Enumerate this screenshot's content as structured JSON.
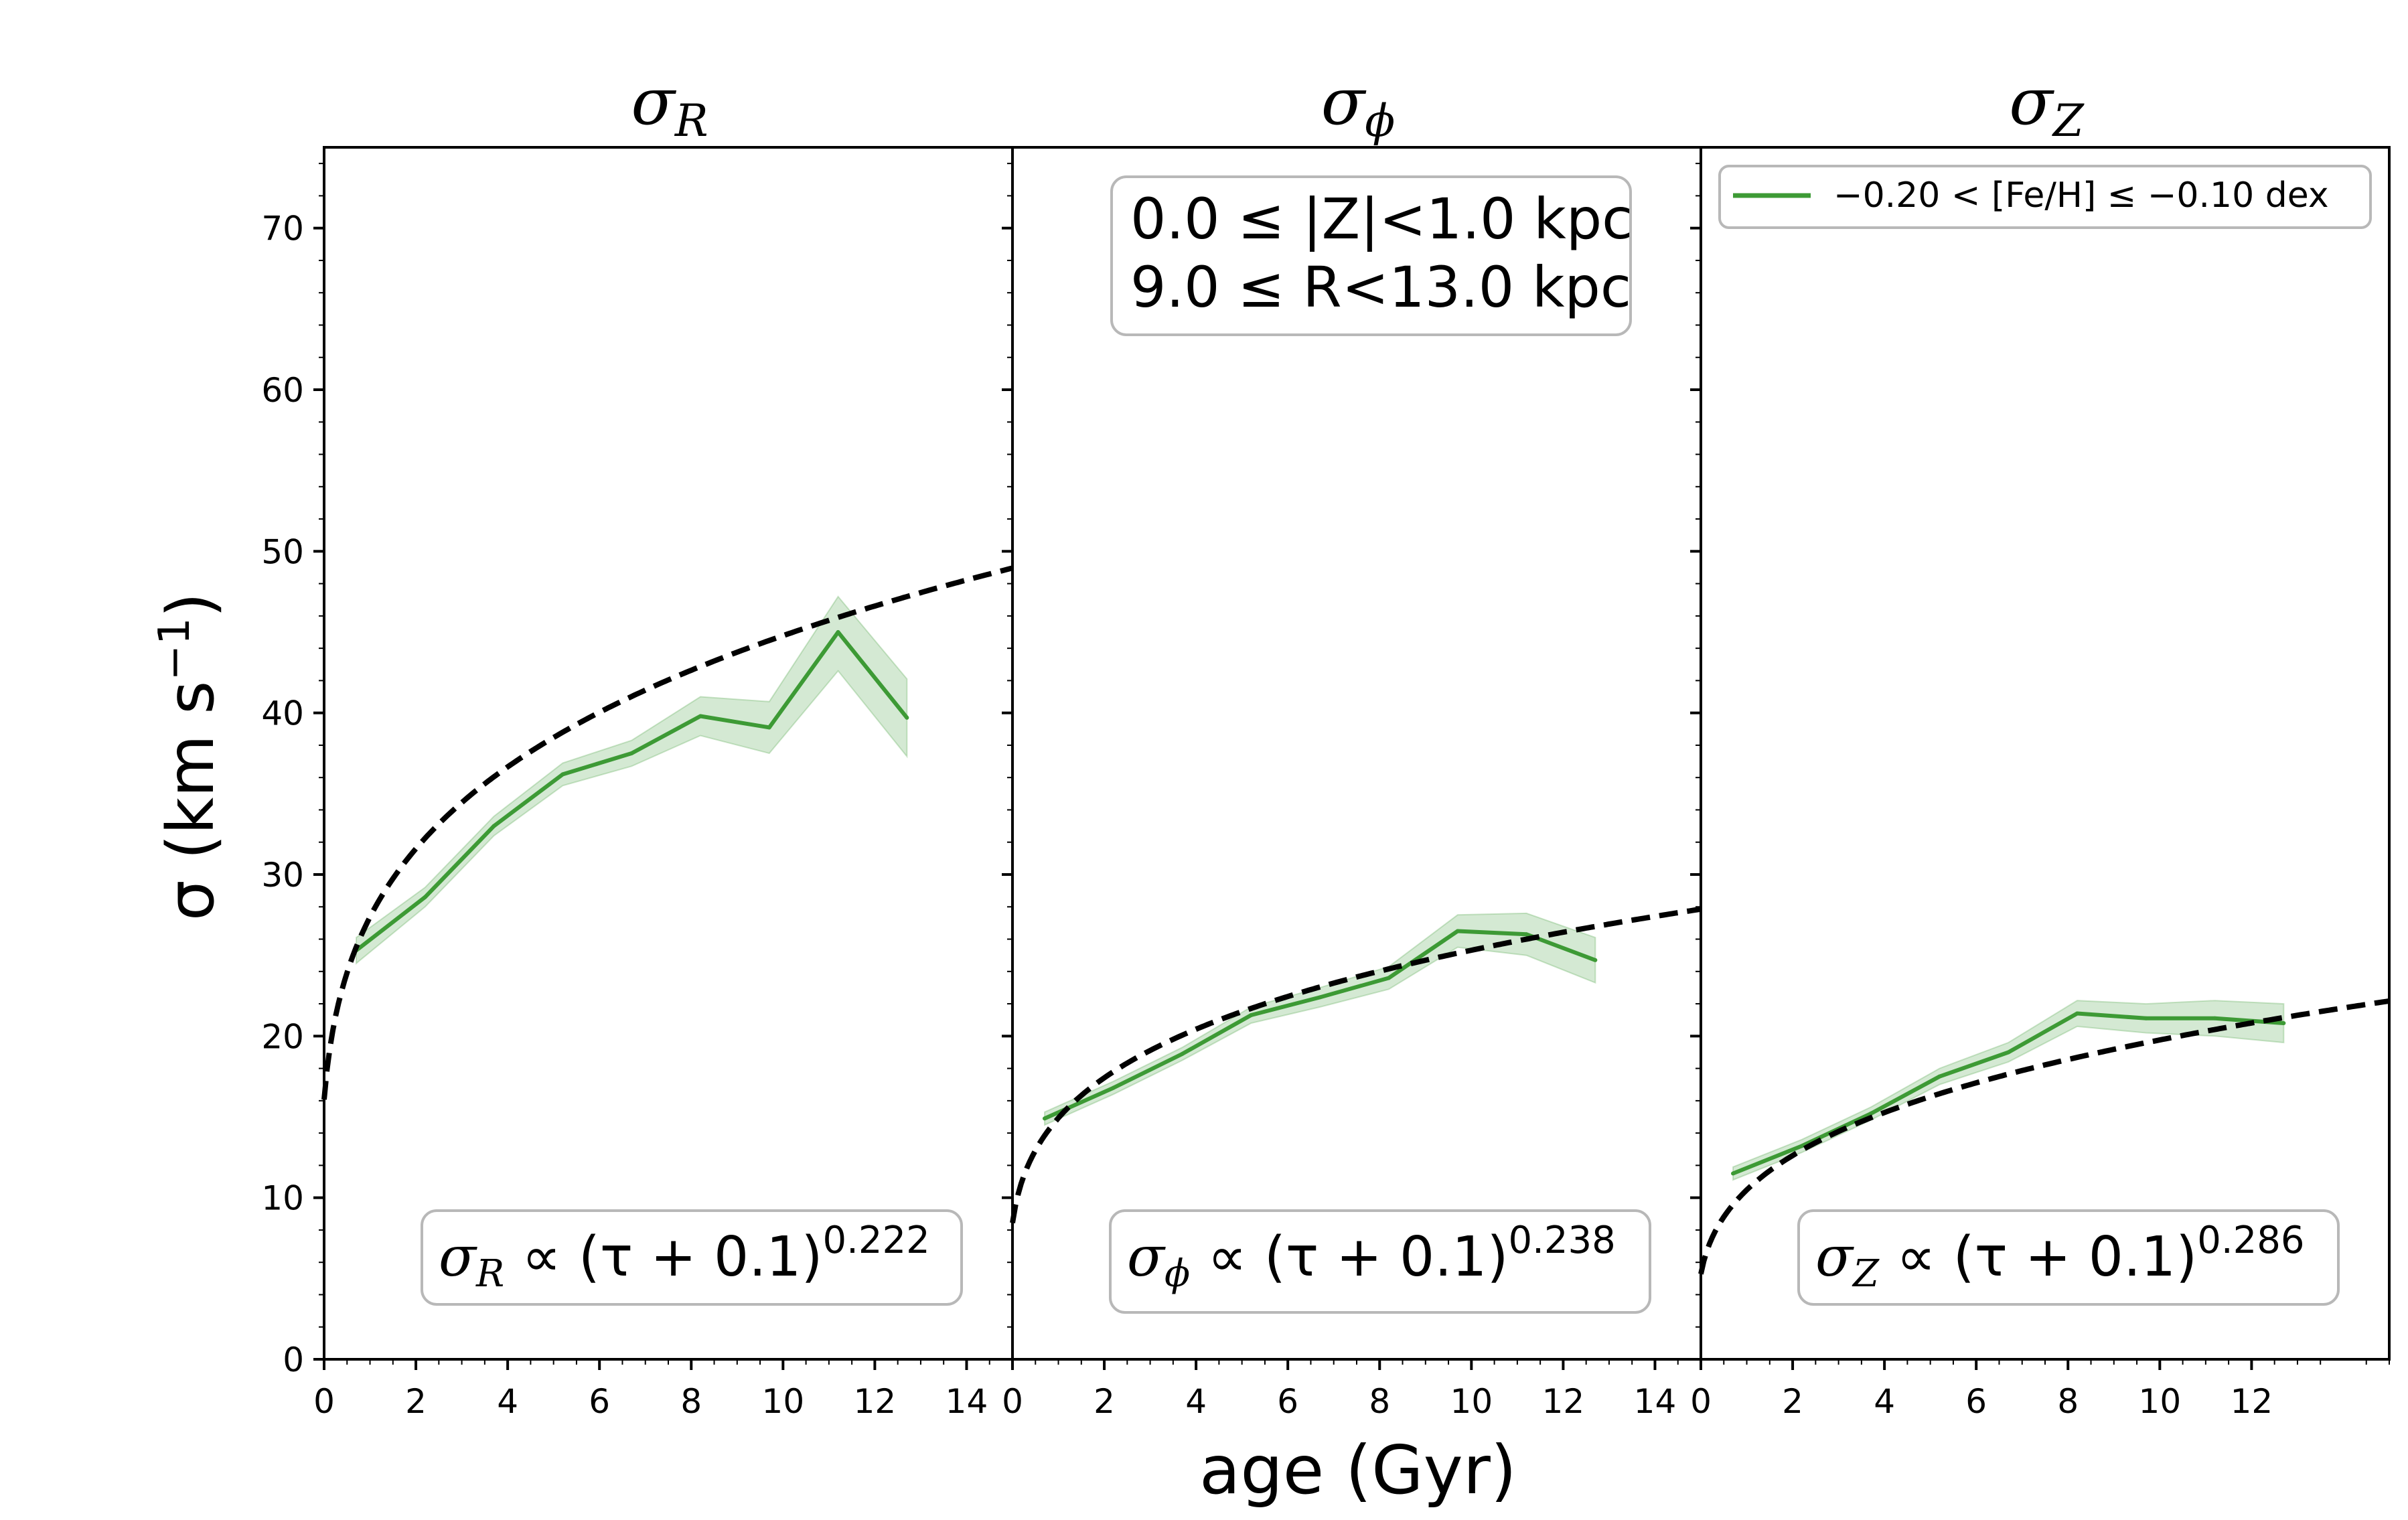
{
  "figure": {
    "xlabel": "age (Gyr)",
    "ylabel_main": "σ (km s",
    "ylabel_sup": "−1",
    "ylabel_close": ")"
  },
  "legend": {
    "entry": "−0.20 < [Fe/H] ≤  −0.10 dex",
    "color": "#3d9a35"
  },
  "region_box": {
    "line1": "0.0 ≤ |Z|<1.0 kpc",
    "line2": "9.0 ≤ R<13.0 kpc"
  },
  "chart_data": [
    {
      "type": "line",
      "title_sym": "σ",
      "title_sub": "R",
      "xlim": [
        0,
        15
      ],
      "ylim": [
        0,
        75
      ],
      "xticks": [
        0,
        2,
        4,
        6,
        8,
        10,
        12,
        14
      ],
      "yticks": [
        0,
        10,
        20,
        30,
        40,
        50,
        60,
        70
      ],
      "x": [
        0.7,
        2.2,
        3.7,
        5.2,
        6.7,
        8.2,
        9.7,
        11.2,
        12.7
      ],
      "y": [
        25.3,
        28.6,
        33.0,
        36.2,
        37.5,
        39.8,
        39.1,
        45.0,
        39.7
      ],
      "y_low": [
        24.5,
        28.0,
        32.4,
        35.5,
        36.7,
        38.6,
        37.5,
        42.6,
        37.3
      ],
      "y_high": [
        26.1,
        29.2,
        33.6,
        36.9,
        38.3,
        41.0,
        40.7,
        47.2,
        42.1
      ],
      "fit": {
        "amplitude": 26.8,
        "offset": 0.1,
        "exponent": 0.222
      },
      "fit_label_sym": "σ",
      "fit_label_sub": "R",
      "fit_label_expr": " ∝  (τ + 0.1)",
      "fit_label_exp": "0.222"
    },
    {
      "type": "line",
      "title_sym": "σ",
      "title_sub": "ϕ",
      "xlim": [
        0,
        15
      ],
      "ylim": [
        0,
        75
      ],
      "xticks": [
        0,
        2,
        4,
        6,
        8,
        10,
        12,
        14
      ],
      "yticks": [
        0,
        10,
        20,
        30,
        40,
        50,
        60,
        70
      ],
      "x": [
        0.7,
        2.2,
        3.7,
        5.2,
        6.7,
        8.2,
        9.7,
        11.2,
        12.7
      ],
      "y": [
        14.9,
        16.8,
        18.9,
        21.3,
        22.4,
        23.6,
        26.5,
        26.3,
        24.7
      ],
      "y_low": [
        14.5,
        16.4,
        18.5,
        20.8,
        21.8,
        22.9,
        25.5,
        25.0,
        23.3
      ],
      "y_high": [
        15.3,
        17.2,
        19.3,
        21.8,
        23.0,
        24.3,
        27.5,
        27.6,
        26.1
      ],
      "fit": {
        "amplitude": 14.6,
        "offset": 0.1,
        "exponent": 0.238
      },
      "fit_label_sym": "σ",
      "fit_label_sub": "ϕ",
      "fit_label_expr": " ∝  (τ + 0.1)",
      "fit_label_exp": "0.238"
    },
    {
      "type": "line",
      "title_sym": "σ",
      "title_sub": "Z",
      "xlim": [
        0,
        15
      ],
      "ylim": [
        0,
        75
      ],
      "xticks": [
        0,
        2,
        4,
        6,
        8,
        10,
        12
      ],
      "yticks": [
        0,
        10,
        20,
        30,
        40,
        50,
        60,
        70
      ],
      "x": [
        0.7,
        2.2,
        3.7,
        5.2,
        6.7,
        8.2,
        9.7,
        11.2,
        12.7
      ],
      "y": [
        11.5,
        13.2,
        15.2,
        17.5,
        19.0,
        21.4,
        21.1,
        21.1,
        20.8
      ],
      "y_low": [
        11.1,
        12.8,
        14.8,
        17.0,
        18.4,
        20.6,
        20.2,
        20.0,
        19.6
      ],
      "y_high": [
        11.9,
        13.6,
        15.6,
        18.0,
        19.6,
        22.2,
        22.0,
        22.2,
        22.0
      ],
      "fit": {
        "amplitude": 10.2,
        "offset": 0.1,
        "exponent": 0.286
      },
      "fit_label_sym": "σ",
      "fit_label_sub": "Z",
      "fit_label_expr": " ∝  (τ + 0.1)",
      "fit_label_exp": "0.286"
    }
  ]
}
